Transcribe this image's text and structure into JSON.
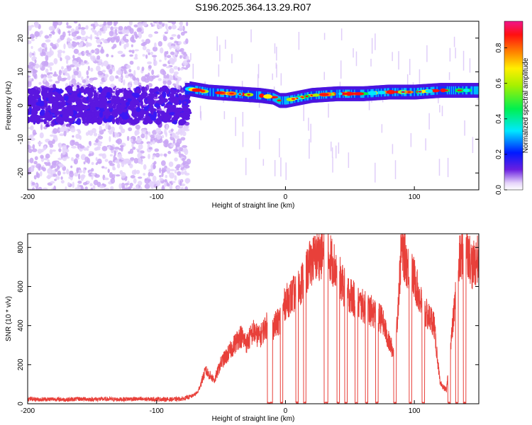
{
  "chart_data": [
    {
      "type": "heatmap",
      "title": "S196.2025.364.13.29.R07",
      "xlabel": "Height of straight line (km)",
      "ylabel": "Frequency (Hz)",
      "xlim": [
        -200,
        150
      ],
      "ylim": [
        -25,
        25
      ],
      "xticks": [
        -200,
        -100,
        0,
        100
      ],
      "yticks": [
        -20,
        -10,
        0,
        10,
        20
      ],
      "colorbar": {
        "label": "Normalized spectral amplitude",
        "range": [
          0,
          0.95
        ],
        "ticks": [
          0.0,
          0.2,
          0.4,
          0.6,
          0.8
        ]
      },
      "ridge": {
        "x": [
          -75,
          -60,
          -40,
          -20,
          -10,
          -5,
          0,
          20,
          40,
          60,
          80,
          100,
          120,
          150
        ],
        "freq": [
          5,
          4,
          3.5,
          3,
          2.5,
          1.5,
          1.5,
          3,
          3.5,
          3.5,
          4,
          4,
          4.5,
          4.5
        ]
      }
    },
    {
      "type": "line",
      "xlabel": "Height of straight line (km)",
      "ylabel": "SNR (10 * v/v)",
      "xlim": [
        -200,
        150
      ],
      "ylim": [
        0,
        870
      ],
      "xticks": [
        -200,
        -100,
        0,
        100
      ],
      "yticks": [
        0,
        200,
        400,
        600,
        800
      ],
      "series": [
        {
          "name": "SNR",
          "color": "#e8403a",
          "x": [
            -200,
            -190,
            -180,
            -170,
            -160,
            -150,
            -140,
            -130,
            -120,
            -110,
            -100,
            -90,
            -80,
            -72,
            -68,
            -62,
            -58,
            -55,
            -50,
            -45,
            -40,
            -35,
            -30,
            -25,
            -20,
            -15,
            -10,
            -5,
            0,
            5,
            10,
            15,
            20,
            25,
            30,
            35,
            40,
            45,
            50,
            55,
            60,
            65,
            70,
            75,
            80,
            85,
            90,
            95,
            100,
            105,
            110,
            115,
            120,
            125,
            130,
            135,
            140,
            145,
            150
          ],
          "y": [
            25,
            22,
            24,
            21,
            25,
            23,
            24,
            22,
            25,
            23,
            24,
            22,
            25,
            40,
            60,
            170,
            140,
            120,
            210,
            250,
            300,
            350,
            310,
            370,
            340,
            400,
            390,
            420,
            520,
            550,
            590,
            650,
            730,
            760,
            770,
            750,
            680,
            600,
            560,
            520,
            500,
            480,
            460,
            430,
            320,
            250,
            800,
            700,
            640,
            520,
            450,
            420,
            100,
            70,
            420,
            730,
            820,
            700,
            750
          ]
        }
      ]
    }
  ]
}
